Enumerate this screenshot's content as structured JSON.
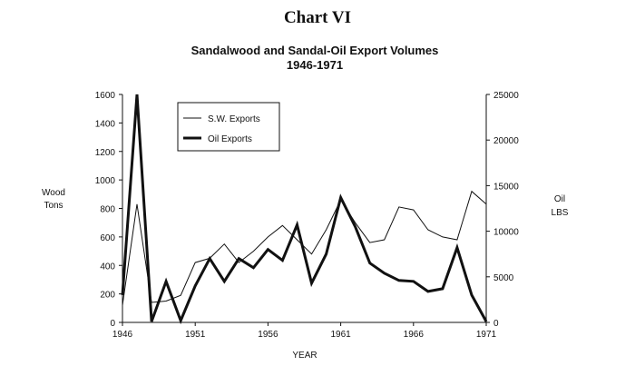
{
  "chart_data": {
    "type": "line",
    "heading": "Chart VI",
    "title_line1": "Sandalwood and Sandal-Oil Export Volumes",
    "title_line2": "1946-1971",
    "xlabel": "YEAR",
    "ylabel_left": [
      "Wood",
      "Tons"
    ],
    "ylabel_right": [
      "Oil",
      "LBS"
    ],
    "xlim": [
      1946,
      1971
    ],
    "ylim_left": [
      0,
      1600
    ],
    "ylim_right": [
      0,
      25000
    ],
    "x_ticks": [
      "1946",
      "1951",
      "1956",
      "1961",
      "1966",
      "1971"
    ],
    "y_ticks_left": [
      "0",
      "200",
      "400",
      "600",
      "800",
      "1000",
      "1200",
      "1400",
      "1600"
    ],
    "y_ticks_right": [
      "0",
      "5000",
      "10000",
      "15000",
      "20000",
      "25000"
    ],
    "x": [
      1946,
      1947,
      1948,
      1949,
      1950,
      1951,
      1952,
      1953,
      1954,
      1955,
      1956,
      1957,
      1958,
      1959,
      1960,
      1961,
      1962,
      1963,
      1964,
      1965,
      1966,
      1967,
      1968,
      1969,
      1970,
      1971
    ],
    "series": [
      {
        "name": "S.W. Exports",
        "axis": "left",
        "style": "thin",
        "values": [
          120,
          830,
          140,
          150,
          190,
          420,
          450,
          550,
          420,
          500,
          600,
          680,
          580,
          480,
          650,
          860,
          700,
          560,
          580,
          810,
          790,
          650,
          600,
          580,
          920,
          830
        ]
      },
      {
        "name": "Oil Exports",
        "axis": "left-secondary",
        "style": "thick",
        "values": [
          3000,
          25000,
          100,
          4500,
          200,
          4000,
          7000,
          4500,
          7000,
          6000,
          8000,
          6800,
          10700,
          4300,
          7500,
          13700,
          10500,
          6500,
          5400,
          4600,
          4500,
          3400,
          3700,
          8200,
          3000,
          100
        ]
      }
    ],
    "legend": {
      "position": "top-left",
      "items": [
        "S.W. Exports",
        "Oil Exports"
      ]
    },
    "grid": false
  }
}
